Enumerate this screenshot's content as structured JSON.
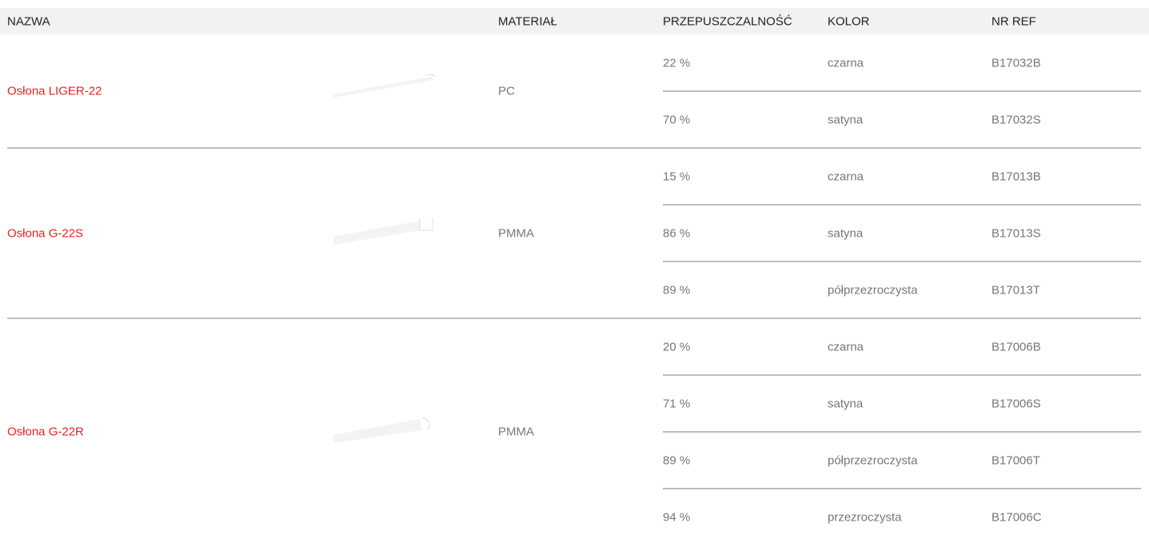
{
  "header": {
    "columns": [
      "NAZWA",
      "MATERIAŁ",
      "PRZEPUSZCZALNOŚĆ",
      "KOLOR",
      "NR REF"
    ]
  },
  "table": {
    "groups": [
      {
        "name": "Osłona LIGER-22",
        "material": "PC",
        "variants": [
          {
            "transmittance": "22 %",
            "color": "czarna",
            "ref": "B17032B"
          },
          {
            "transmittance": "70 %",
            "color": "satyna",
            "ref": "B17032S"
          }
        ]
      },
      {
        "name": "Osłona G-22S",
        "material": "PMMA",
        "variants": [
          {
            "transmittance": "15 %",
            "color": "czarna",
            "ref": "B17013B"
          },
          {
            "transmittance": "86 %",
            "color": "satyna",
            "ref": "B17013S"
          },
          {
            "transmittance": "89 %",
            "color": "półprzezroczysta",
            "ref": "B17013T"
          }
        ]
      },
      {
        "name": "Osłona G-22R",
        "material": "PMMA",
        "variants": [
          {
            "transmittance": "20 %",
            "color": "czarna",
            "ref": "B17006B"
          },
          {
            "transmittance": "71 %",
            "color": "satyna",
            "ref": "B17006S"
          },
          {
            "transmittance": "89 %",
            "color": "półprzezroczysta",
            "ref": "B17006T"
          },
          {
            "transmittance": "94 %",
            "color": "przezroczysta",
            "ref": "B17006C"
          }
        ]
      }
    ]
  }
}
